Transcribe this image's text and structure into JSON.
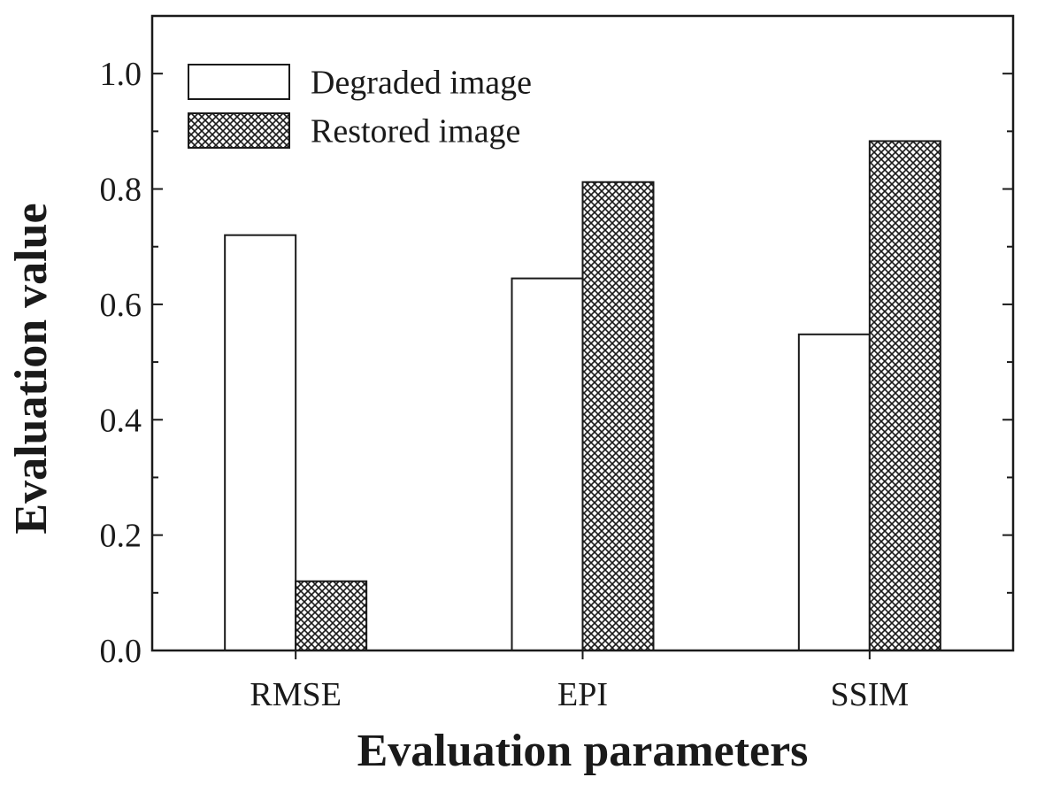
{
  "chart_data": {
    "type": "bar",
    "title": "",
    "xlabel": "Evaluation parameters",
    "ylabel": "Evaluation value",
    "categories": [
      "RMSE",
      "EPI",
      "SSIM"
    ],
    "series": [
      {
        "name": "Degraded image",
        "values": [
          0.72,
          0.645,
          0.548
        ],
        "pattern": "none"
      },
      {
        "name": "Restored image",
        "values": [
          0.12,
          0.812,
          0.883
        ],
        "pattern": "crosshatch"
      }
    ],
    "ylim": [
      0,
      1.1
    ],
    "yticks": [
      0.0,
      0.2,
      0.4,
      0.6,
      0.8,
      1.0
    ],
    "ytick_labels": [
      "0.0",
      "0.2",
      "0.4",
      "0.6",
      "0.8",
      "1.0"
    ],
    "grid": false,
    "legend_position": "top-left",
    "colors": {
      "bar_fill": "#ffffff",
      "hatch": "#1a1a1a",
      "axis": "#1a1a1a"
    }
  }
}
